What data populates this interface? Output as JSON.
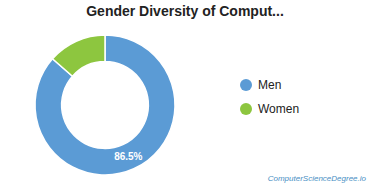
{
  "chart_data": {
    "type": "pie",
    "title": "Gender Diversity of Comput...",
    "categories": [
      "Men",
      "Women"
    ],
    "values": [
      86.5,
      13.5
    ],
    "colors": [
      "#5b9bd5",
      "#8dc63f"
    ],
    "data_labels": true,
    "value_labels": [
      "86.5%",
      null
    ],
    "legend": "right",
    "annotations": [
      {
        "text": "ComputerScienceDegree.io",
        "color": "#4a90c4"
      }
    ]
  }
}
